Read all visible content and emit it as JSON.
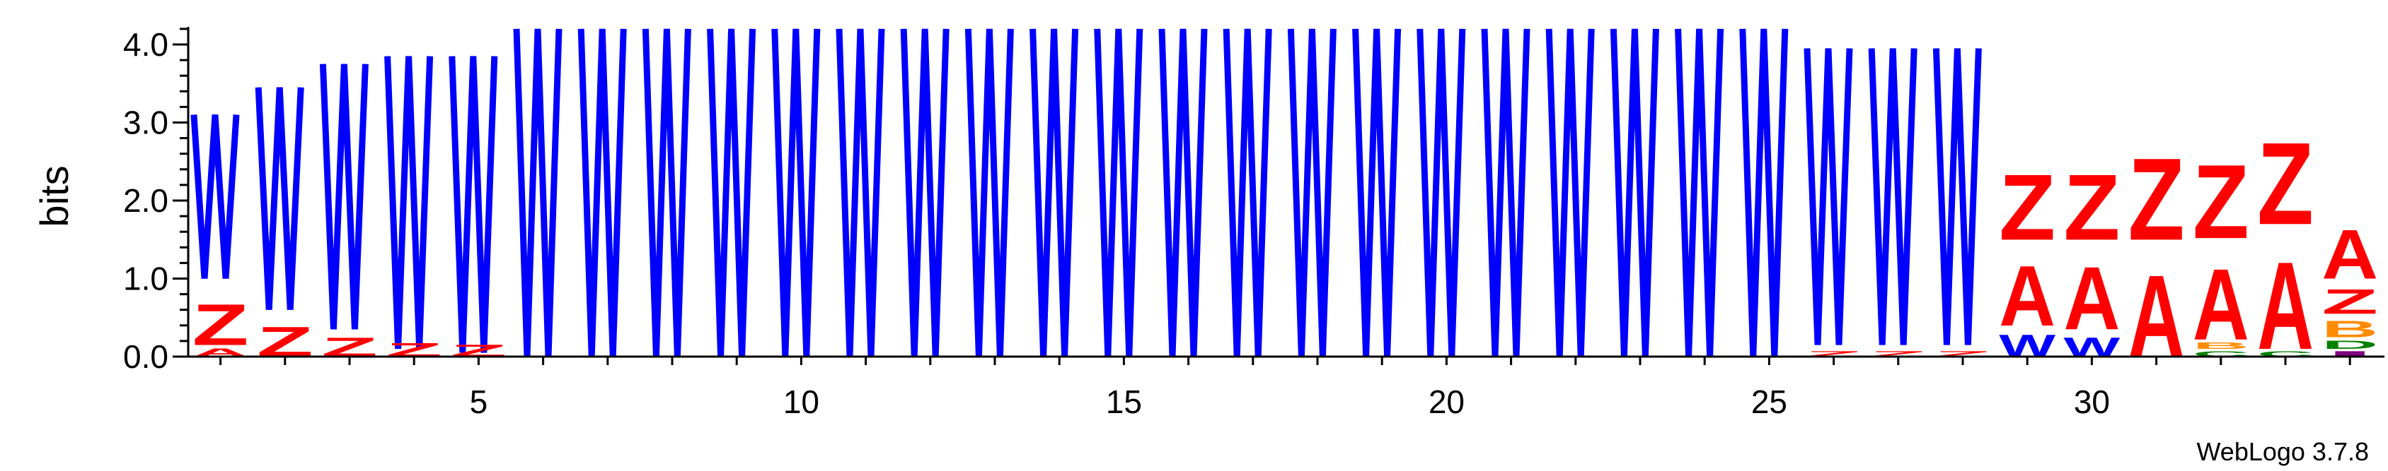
{
  "chart_data": {
    "type": "sequence-logo",
    "ylabel": "bits",
    "ylim": [
      0,
      4.0
    ],
    "y_ticks": [
      "0.0",
      "1.0",
      "2.0",
      "3.0",
      "4.0"
    ],
    "x_ticks": [
      5,
      10,
      15,
      20,
      25,
      30
    ],
    "positions_total": 34,
    "colors": {
      "Z": "#ff0000",
      "A": "#ff0000",
      "W": "#0000ff",
      "B": "#ff8c00",
      "C": "#008000",
      "D": "#008000",
      "I": "#800080",
      "zigzag": "#0000ff"
    },
    "zigzag_columns": [
      {
        "pos": 1,
        "top": 3.1,
        "bottom": 1.0
      },
      {
        "pos": 2,
        "top": 3.45,
        "bottom": 0.6
      },
      {
        "pos": 3,
        "top": 3.75,
        "bottom": 0.35
      },
      {
        "pos": 4,
        "top": 3.85,
        "bottom": 0.1
      },
      {
        "pos": 5,
        "top": 3.85,
        "bottom": 0.05
      },
      {
        "pos": 6,
        "top": 4.2,
        "bottom": 0
      },
      {
        "pos": 7,
        "top": 4.2,
        "bottom": 0
      },
      {
        "pos": 8,
        "top": 4.2,
        "bottom": 0
      },
      {
        "pos": 9,
        "top": 4.2,
        "bottom": 0
      },
      {
        "pos": 10,
        "top": 4.2,
        "bottom": 0
      },
      {
        "pos": 11,
        "top": 4.2,
        "bottom": 0
      },
      {
        "pos": 12,
        "top": 4.2,
        "bottom": 0
      },
      {
        "pos": 13,
        "top": 4.2,
        "bottom": 0
      },
      {
        "pos": 14,
        "top": 4.2,
        "bottom": 0
      },
      {
        "pos": 15,
        "top": 4.2,
        "bottom": 0
      },
      {
        "pos": 16,
        "top": 4.2,
        "bottom": 0
      },
      {
        "pos": 17,
        "top": 4.2,
        "bottom": 0
      },
      {
        "pos": 18,
        "top": 4.2,
        "bottom": 0
      },
      {
        "pos": 19,
        "top": 4.2,
        "bottom": 0
      },
      {
        "pos": 20,
        "top": 4.2,
        "bottom": 0
      },
      {
        "pos": 21,
        "top": 4.2,
        "bottom": 0
      },
      {
        "pos": 22,
        "top": 4.2,
        "bottom": 0
      },
      {
        "pos": 23,
        "top": 4.2,
        "bottom": 0
      },
      {
        "pos": 24,
        "top": 4.2,
        "bottom": 0
      },
      {
        "pos": 25,
        "top": 4.2,
        "bottom": 0
      },
      {
        "pos": 26,
        "top": 3.95,
        "bottom": 0.15
      },
      {
        "pos": 27,
        "top": 3.95,
        "bottom": 0.15
      },
      {
        "pos": 28,
        "top": 3.95,
        "bottom": 0.15
      }
    ],
    "letter_stacks": [
      {
        "pos": 1,
        "letters": [
          {
            "char": "A",
            "bits": 0.15
          },
          {
            "char": "Z",
            "bits": 0.75
          }
        ]
      },
      {
        "pos": 2,
        "letters": [
          {
            "char": "Z",
            "bits": 0.55
          }
        ]
      },
      {
        "pos": 3,
        "letters": [
          {
            "char": "Z",
            "bits": 0.35
          }
        ]
      },
      {
        "pos": 4,
        "letters": [
          {
            "char": "Z",
            "bits": 0.25
          }
        ]
      },
      {
        "pos": 5,
        "letters": [
          {
            "char": "Z",
            "bits": 0.22
          }
        ]
      },
      {
        "pos": 26,
        "letters": [
          {
            "char": "Z",
            "bits": 0.1
          }
        ]
      },
      {
        "pos": 27,
        "letters": [
          {
            "char": "Z",
            "bits": 0.1
          }
        ]
      },
      {
        "pos": 28,
        "letters": [
          {
            "char": "Z",
            "bits": 0.1
          }
        ]
      },
      {
        "pos": 29,
        "letters": [
          {
            "char": "W",
            "bits": 0.4
          },
          {
            "char": "A",
            "bits": 1.1
          },
          {
            "char": "Z",
            "bits": 1.2
          }
        ]
      },
      {
        "pos": 30,
        "letters": [
          {
            "char": "W",
            "bits": 0.35
          },
          {
            "char": "A",
            "bits": 1.15
          },
          {
            "char": "Z",
            "bits": 1.2
          }
        ]
      },
      {
        "pos": 31,
        "letters": [
          {
            "char": "A",
            "bits": 1.5
          },
          {
            "char": "Z",
            "bits": 1.5
          }
        ]
      },
      {
        "pos": 32,
        "letters": [
          {
            "char": "C",
            "bits": 0.1
          },
          {
            "char": "B",
            "bits": 0.12
          },
          {
            "char": "A",
            "bits": 1.3
          },
          {
            "char": "Z",
            "bits": 1.35
          }
        ]
      },
      {
        "pos": 33,
        "letters": [
          {
            "char": "C",
            "bits": 0.1
          },
          {
            "char": "A",
            "bits": 1.6
          },
          {
            "char": "Z",
            "bits": 1.5
          }
        ]
      },
      {
        "pos": 34,
        "letters": [
          {
            "char": "I",
            "bits": 0.1
          },
          {
            "char": "D",
            "bits": 0.15
          },
          {
            "char": "B",
            "bits": 0.3
          },
          {
            "char": "Z",
            "bits": 0.45
          },
          {
            "char": "A",
            "bits": 0.9
          }
        ]
      }
    ],
    "credit": "WebLogo 3.7.8"
  }
}
